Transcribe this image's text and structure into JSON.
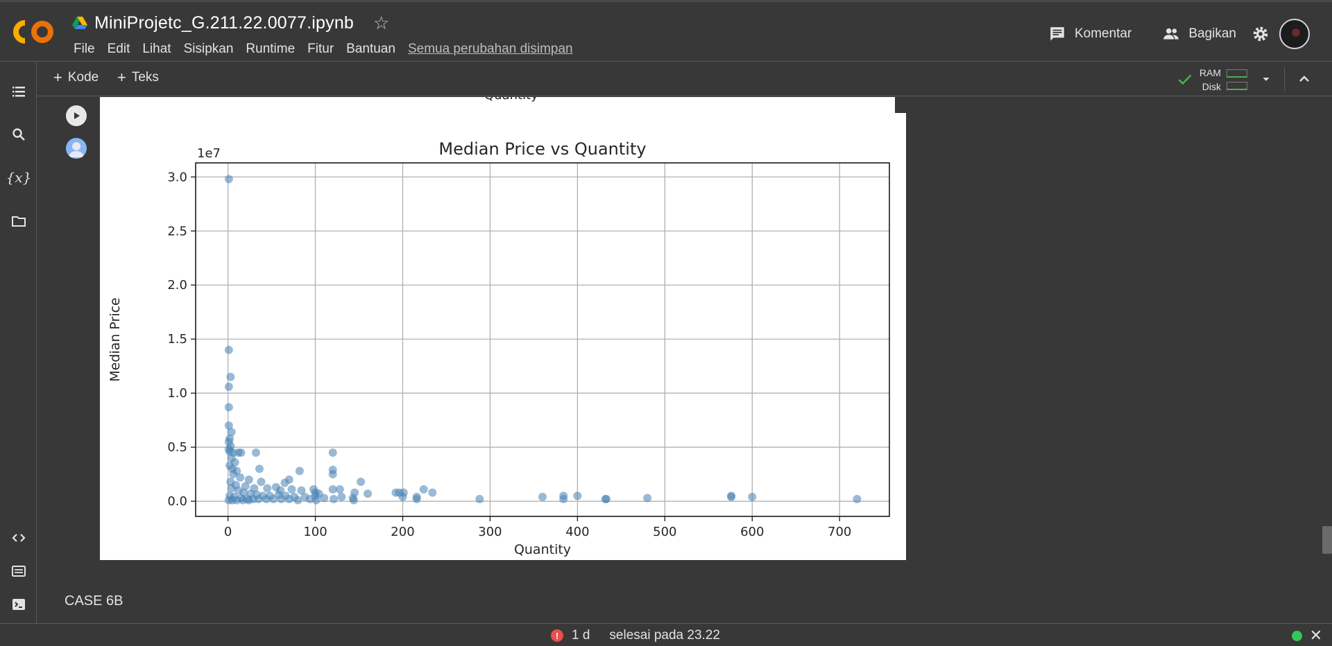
{
  "header": {
    "title": "MiniProjetc_G.211.22.0077.ipynb",
    "menu": [
      "File",
      "Edit",
      "Lihat",
      "Sisipkan",
      "Runtime",
      "Fitur",
      "Bantuan"
    ],
    "save_status": "Semua perubahan disimpan",
    "comment_label": "Komentar",
    "share_label": "Bagikan"
  },
  "toolbar": {
    "add_code": "Kode",
    "add_text": "Teks",
    "ram_label": "RAM",
    "disk_label": "Disk"
  },
  "previous_output": {
    "xlabel": "Quantity"
  },
  "chart_data": {
    "type": "scatter",
    "title": "Median Price vs Quantity",
    "xlabel": "Quantity",
    "ylabel": "Median Price",
    "y_offset_label": "1e7",
    "xlim": [
      -37,
      757
    ],
    "ylim": [
      -0.14,
      3.13
    ],
    "xticks": [
      0,
      100,
      200,
      300,
      400,
      500,
      600,
      700
    ],
    "yticks": [
      0.0,
      0.5,
      1.0,
      1.5,
      2.0,
      2.5,
      3.0
    ],
    "ytick_labels": [
      "0.0",
      "0.5",
      "1.0",
      "1.5",
      "2.0",
      "2.5",
      "3.0"
    ],
    "grid": true,
    "color": "#4682b4",
    "points_y_units": "1e7",
    "points": [
      [
        1,
        2.98
      ],
      [
        1,
        1.4
      ],
      [
        3,
        1.15
      ],
      [
        1,
        1.06
      ],
      [
        1,
        0.87
      ],
      [
        1,
        0.7
      ],
      [
        4,
        0.64
      ],
      [
        2,
        0.58
      ],
      [
        1,
        0.55
      ],
      [
        3,
        0.51
      ],
      [
        1,
        0.48
      ],
      [
        2,
        0.46
      ],
      [
        6,
        0.45
      ],
      [
        12,
        0.45
      ],
      [
        15,
        0.45
      ],
      [
        32,
        0.45
      ],
      [
        120,
        0.45
      ],
      [
        4,
        0.4
      ],
      [
        8,
        0.36
      ],
      [
        2,
        0.33
      ],
      [
        5,
        0.3
      ],
      [
        10,
        0.28
      ],
      [
        36,
        0.3
      ],
      [
        82,
        0.28
      ],
      [
        120,
        0.29
      ],
      [
        120,
        0.25
      ],
      [
        6,
        0.25
      ],
      [
        14,
        0.22
      ],
      [
        24,
        0.2
      ],
      [
        38,
        0.18
      ],
      [
        70,
        0.2
      ],
      [
        65,
        0.17
      ],
      [
        152,
        0.18
      ],
      [
        3,
        0.18
      ],
      [
        9,
        0.15
      ],
      [
        20,
        0.14
      ],
      [
        30,
        0.12
      ],
      [
        45,
        0.12
      ],
      [
        55,
        0.13
      ],
      [
        60,
        0.1
      ],
      [
        73,
        0.11
      ],
      [
        84,
        0.1
      ],
      [
        98,
        0.11
      ],
      [
        120,
        0.11
      ],
      [
        128,
        0.11
      ],
      [
        145,
        0.08
      ],
      [
        160,
        0.07
      ],
      [
        100,
        0.08
      ],
      [
        104,
        0.07
      ],
      [
        4,
        0.12
      ],
      [
        12,
        0.1
      ],
      [
        18,
        0.08
      ],
      [
        26,
        0.07
      ],
      [
        33,
        0.06
      ],
      [
        40,
        0.05
      ],
      [
        48,
        0.05
      ],
      [
        58,
        0.06
      ],
      [
        66,
        0.05
      ],
      [
        76,
        0.04
      ],
      [
        88,
        0.04
      ],
      [
        100,
        0.05
      ],
      [
        110,
        0.03
      ],
      [
        130,
        0.04
      ],
      [
        143,
        0.03
      ],
      [
        2,
        0.05
      ],
      [
        7,
        0.04
      ],
      [
        15,
        0.03
      ],
      [
        22,
        0.02
      ],
      [
        29,
        0.02
      ],
      [
        35,
        0.02
      ],
      [
        44,
        0.02
      ],
      [
        52,
        0.02
      ],
      [
        61,
        0.02
      ],
      [
        70,
        0.02
      ],
      [
        80,
        0.01
      ],
      [
        94,
        0.02
      ],
      [
        101,
        0.01
      ],
      [
        121,
        0.02
      ],
      [
        144,
        0.01
      ],
      [
        1,
        0.01
      ],
      [
        5,
        0.01
      ],
      [
        10,
        0.01
      ],
      [
        17,
        0.01
      ],
      [
        24,
        0.01
      ],
      [
        192,
        0.08
      ],
      [
        196,
        0.08
      ],
      [
        201,
        0.08
      ],
      [
        200,
        0.04
      ],
      [
        216,
        0.04
      ],
      [
        216,
        0.02
      ],
      [
        224,
        0.11
      ],
      [
        234,
        0.08
      ],
      [
        288,
        0.02
      ],
      [
        360,
        0.04
      ],
      [
        384,
        0.05
      ],
      [
        384,
        0.02
      ],
      [
        400,
        0.05
      ],
      [
        432,
        0.02
      ],
      [
        433,
        0.02
      ],
      [
        480,
        0.03
      ],
      [
        576,
        0.05
      ],
      [
        576,
        0.04
      ],
      [
        600,
        0.04
      ],
      [
        720,
        0.02
      ]
    ]
  },
  "cells": {
    "next_cell_text": "CASE 6B"
  },
  "status": {
    "error_count": "1 d",
    "completion": "selesai pada 23.22"
  }
}
